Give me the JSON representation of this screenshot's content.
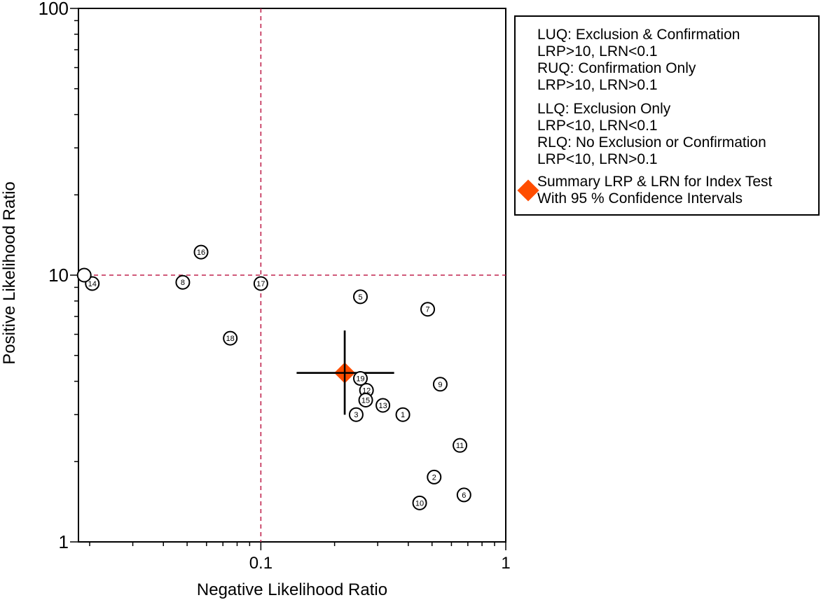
{
  "chart_data": {
    "type": "scatter",
    "xscale": "log",
    "yscale": "log",
    "xlim": [
      0.018,
      1
    ],
    "ylim": [
      1,
      100
    ],
    "xlabel": "Negative Likelihood Ratio",
    "ylabel": "Positive Likelihood Ratio",
    "xticks": [
      {
        "value": 0.1,
        "label": "0.1"
      },
      {
        "value": 1,
        "label": "1"
      }
    ],
    "yticks": [
      {
        "value": 1,
        "label": "1"
      },
      {
        "value": 10,
        "label": "10"
      },
      {
        "value": 100,
        "label": "100"
      }
    ],
    "reference_lines": {
      "lrn": 0.1,
      "lrp": 10,
      "color": "#c0244e"
    },
    "studies": [
      {
        "id": "1",
        "lrn": 0.38,
        "lrp": 3.0
      },
      {
        "id": "2",
        "lrn": 0.51,
        "lrp": 1.75
      },
      {
        "id": "3",
        "lrn": 0.245,
        "lrp": 3.0
      },
      {
        "id": "5",
        "lrn": 0.255,
        "lrp": 8.3
      },
      {
        "id": "6",
        "lrn": 0.675,
        "lrp": 1.5
      },
      {
        "id": "7",
        "lrn": 0.48,
        "lrp": 7.45
      },
      {
        "id": "8",
        "lrn": 0.048,
        "lrp": 9.4
      },
      {
        "id": "9",
        "lrn": 0.54,
        "lrp": 3.9
      },
      {
        "id": "10",
        "lrn": 0.445,
        "lrp": 1.4
      },
      {
        "id": "11",
        "lrn": 0.65,
        "lrp": 2.3
      },
      {
        "id": "12",
        "lrn": 0.27,
        "lrp": 3.7
      },
      {
        "id": "13",
        "lrn": 0.315,
        "lrp": 3.25
      },
      {
        "id": "14",
        "lrn": 0.0205,
        "lrp": 9.3
      },
      {
        "id": "15",
        "lrn": 0.268,
        "lrp": 3.4
      },
      {
        "id": "16",
        "lrn": 0.057,
        "lrp": 12.2
      },
      {
        "id": "17",
        "lrn": 0.1,
        "lrp": 9.3
      },
      {
        "id": "18",
        "lrn": 0.075,
        "lrp": 5.8
      },
      {
        "id": "19",
        "lrn": 0.255,
        "lrp": 4.1
      },
      {
        "id": "",
        "lrn": 0.019,
        "lrp": 10.0
      }
    ],
    "summary": {
      "lrn": 0.22,
      "lrp": 4.3,
      "lrn_ci": [
        0.14,
        0.35
      ],
      "lrp_ci": [
        3.0,
        6.2
      ],
      "color": "#ff4d00"
    },
    "legend": {
      "lines": [
        "LUQ: Exclusion & Confirmation",
        "LRP>10, LRN<0.1",
        "RUQ: Confirmation Only",
        "LRP>10, LRN>0.1",
        "LLQ: Exclusion Only",
        "LRP<10, LRN<0.1",
        "RLQ: No Exclusion or Confirmation",
        "LRP<10, LRN>0.1"
      ],
      "summary_lines": [
        "Summary LRP & LRN for Index Test",
        "With 95 % Confidence Intervals"
      ],
      "placement": "right"
    }
  }
}
